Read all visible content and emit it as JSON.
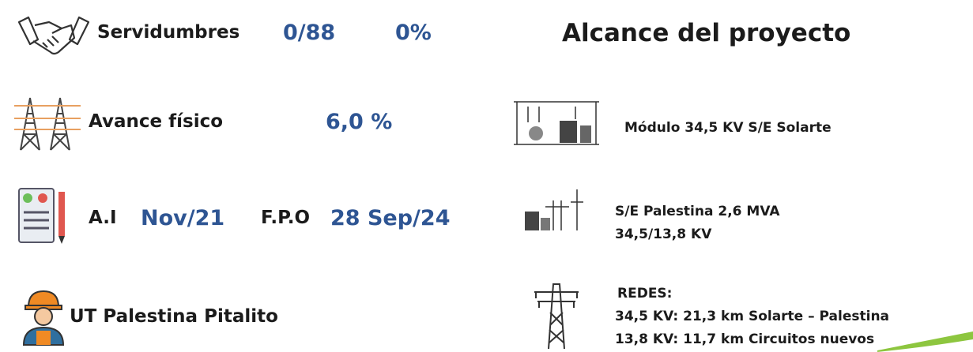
{
  "left": {
    "servidumbres": {
      "label": "Servidumbres",
      "count": "0/88",
      "percent": "0%"
    },
    "avance": {
      "label": "Avance físico",
      "value": "6,0 %"
    },
    "fechas": {
      "ai_label": "A.I",
      "ai_value": "Nov/21",
      "fpo_label": "F.P.O",
      "fpo_value": "28 Sep/24"
    },
    "contratista": "UT Palestina Pitalito"
  },
  "right": {
    "title": "Alcance del proyecto",
    "items": [
      {
        "lines": [
          "Módulo 34,5 KV S/E Solarte"
        ]
      },
      {
        "lines": [
          "S/E Palestina 2,6 MVA",
          "34,5/13,8 KV"
        ]
      },
      {
        "lines": [
          "REDES:",
          "34,5 KV: 21,3 km Solarte – Palestina",
          "13,8 KV: 11,7 km Circuitos nuevos"
        ]
      }
    ]
  }
}
